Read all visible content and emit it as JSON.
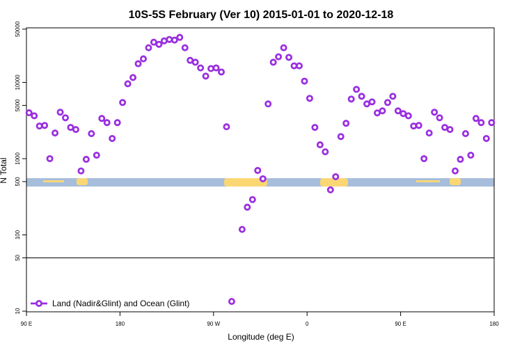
{
  "chart_data": {
    "type": "scatter",
    "title": "10S-5S February (Ver 10)   2015-01-01 to 2020-12-18",
    "x_label": "Longitude (deg E)",
    "y_label": "N Total",
    "log_y": true,
    "xlim": [
      90,
      540
    ],
    "ylim": [
      9.8,
      52000
    ],
    "xticks": [
      {
        "value": 90,
        "label": "90 E"
      },
      180,
      {
        "value": 270,
        "label": "90 W"
      },
      {
        "value": 360,
        "label": "0"
      },
      {
        "value": 450,
        "label": "90 E"
      },
      {
        "value": 540,
        "label": "180"
      }
    ],
    "yticks": [
      10,
      50,
      100,
      500,
      1000,
      5000,
      10000,
      50000
    ],
    "reference_line": 50,
    "legend": "bottom-left",
    "series": [
      {
        "name": "Land (Nadir&Glint) and Ocean (Glint)",
        "color": "#9a2fe0",
        "x": [
          92.5,
          97.5,
          102.5,
          107.5,
          112.5,
          117.5,
          122.5,
          127.5,
          132.5,
          137.5,
          142.5,
          147.5,
          152.5,
          157.5,
          162.5,
          167.5,
          172.5,
          177.5,
          182.5,
          187.5,
          192.5,
          197.5,
          202.5,
          207.5,
          212.5,
          217.5,
          222.5,
          227.5,
          232.5,
          237.5,
          242.5,
          247.5,
          252.5,
          257.5,
          262.5,
          267.5,
          272.5,
          277.5,
          282.5,
          287.5,
          297.5,
          302.5,
          307.5,
          312.5,
          317.5,
          322.5,
          327.5,
          332.5,
          337.5,
          342.5,
          347.5,
          352.5,
          357.5,
          362.5,
          367.5,
          372.5,
          377.5,
          382.5,
          387.5,
          392.5,
          397.5,
          402.5,
          407.5,
          412.5,
          417.5,
          422.5,
          427.5,
          432.5,
          437.5,
          442.5,
          447.5,
          452.5,
          457.5,
          462.5,
          467.5,
          472.5,
          477.5,
          482.5,
          487.5,
          492.5,
          497.5,
          502.5,
          507.5,
          512.5,
          517.5,
          522.5,
          527.5,
          532.5,
          537.5
        ],
        "values": [
          4000,
          3650,
          2680,
          2730,
          1000,
          2170,
          4070,
          3440,
          2570,
          2410,
          690,
          980,
          2130,
          1110,
          3370,
          2970,
          1840,
          2970,
          5450,
          9600,
          11600,
          17600,
          20400,
          28500,
          33700,
          31600,
          35100,
          36600,
          35900,
          39000,
          28500,
          19500,
          18400,
          15500,
          12100,
          15200,
          15500,
          13700,
          2620,
          13.4,
          118,
          231,
          291,
          700,
          545,
          5230,
          18400,
          21700,
          28500,
          21300,
          16500,
          16500,
          10400,
          6180,
          2570,
          1520,
          1230,
          390,
          580,
          1950,
          2910,
          6050,
          8110,
          6580,
          5230,
          5560,
          3980,
          4240,
          5450,
          6580,
          4240,
          3900,
          3650,
          2680,
          2730,
          1000,
          2170,
          4070,
          3440,
          2570,
          2410,
          690,
          980,
          2130,
          1110,
          3370,
          2970,
          1840,
          2970
        ]
      }
    ]
  }
}
